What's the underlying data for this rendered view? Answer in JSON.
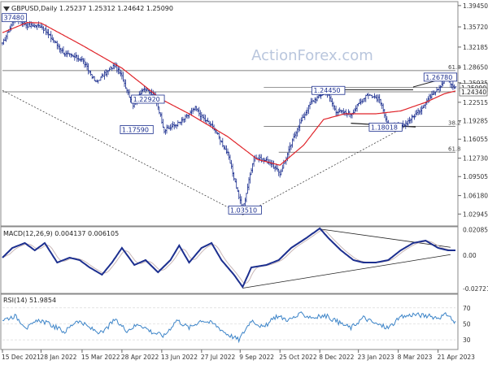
{
  "chart_data": {
    "type": "line",
    "instrument": "GBPUSD,Daily",
    "ohlc": "1.25237 1.25312 1.24642 1.25090",
    "watermark": "ActionForex.com",
    "price_axis": {
      "ylim": [
        1.01,
        1.4
      ],
      "ticks": [
        "1.39450",
        "1.35720",
        "1.32185",
        "1.28650",
        "1.25935",
        "1.22515",
        "1.19285",
        "1.16055",
        "1.12730",
        "1.09505",
        "1.06180",
        "1.02945"
      ],
      "tick_values": [
        1.3945,
        1.3572,
        1.32185,
        1.2865,
        1.25935,
        1.22515,
        1.19285,
        1.16055,
        1.1273,
        1.09505,
        1.0618,
        1.02945
      ],
      "current_price_label": "1.25090",
      "current_price": 1.2509,
      "support_label": "1.24340",
      "support_price": 1.2434
    },
    "x_axis": {
      "labels": [
        "15 Dec 2021",
        "28 Jan 2022",
        "15 Mar 2022",
        "28 Apr 2022",
        "13 Jun 2022",
        "27 Jul 2022",
        "9 Sep 2022",
        "25 Oct 2022",
        "8 Dec 2022",
        "23 Jan 2023",
        "8 Mar 2023",
        "21 Apr 2023"
      ],
      "label_index": [
        0,
        31,
        64,
        96,
        128,
        160,
        191,
        223,
        255,
        286,
        318,
        350
      ],
      "total_bars": 365
    },
    "price_path": [
      [
        0,
        1.3265
      ],
      [
        10,
        1.3748
      ],
      [
        20,
        1.36
      ],
      [
        31,
        1.359
      ],
      [
        50,
        1.31
      ],
      [
        64,
        1.3
      ],
      [
        75,
        1.26
      ],
      [
        90,
        1.29
      ],
      [
        96,
        1.27
      ],
      [
        105,
        1.22
      ],
      [
        113,
        1.25
      ],
      [
        123,
        1.235
      ],
      [
        130,
        1.1759
      ],
      [
        143,
        1.19
      ],
      [
        155,
        1.215
      ],
      [
        160,
        1.2
      ],
      [
        170,
        1.18
      ],
      [
        181,
        1.135
      ],
      [
        193,
        1.0351
      ],
      [
        202,
        1.13
      ],
      [
        215,
        1.12
      ],
      [
        223,
        1.1
      ],
      [
        237,
        1.18
      ],
      [
        248,
        1.225
      ],
      [
        260,
        1.2445
      ],
      [
        268,
        1.21
      ],
      [
        280,
        1.205
      ],
      [
        293,
        1.24
      ],
      [
        303,
        1.23
      ],
      [
        310,
        1.186
      ],
      [
        320,
        1.1802
      ],
      [
        335,
        1.21
      ],
      [
        345,
        1.24
      ],
      [
        350,
        1.25
      ],
      [
        357,
        1.2678
      ],
      [
        361,
        1.255
      ],
      [
        364,
        1.2509
      ]
    ],
    "ma_path": [
      [
        0,
        1.347
      ],
      [
        20,
        1.365
      ],
      [
        31,
        1.364
      ],
      [
        64,
        1.325
      ],
      [
        96,
        1.285
      ],
      [
        128,
        1.23
      ],
      [
        150,
        1.205
      ],
      [
        181,
        1.165
      ],
      [
        205,
        1.125
      ],
      [
        223,
        1.115
      ],
      [
        242,
        1.15
      ],
      [
        258,
        1.195
      ],
      [
        275,
        1.205
      ],
      [
        300,
        1.205
      ],
      [
        320,
        1.21
      ],
      [
        340,
        1.225
      ],
      [
        355,
        1.24
      ],
      [
        364,
        1.245
      ]
    ],
    "annotations": [
      {
        "text": "37480",
        "index": 1,
        "price": 1.372
      },
      {
        "text": "1.22920",
        "index": 105,
        "price": 1.2292
      },
      {
        "text": "1.17590",
        "index": 96,
        "price": 1.1759
      },
      {
        "text": "1.03510",
        "index": 183,
        "price": 1.0351
      },
      {
        "text": "1.24450",
        "index": 250,
        "price": 1.2445
      },
      {
        "text": "1.18018",
        "index": 296,
        "price": 1.1802
      },
      {
        "text": "1.26780",
        "index": 340,
        "price": 1.2678
      }
    ],
    "fib_labels": [
      {
        "text": "61.8",
        "price": 1.2806
      },
      {
        "text": "38.2",
        "price": 1.1831
      },
      {
        "text": "61.8",
        "price": 1.1377
      }
    ],
    "macd": {
      "label": "MACD(12,26,9) 0.004137 0.006105",
      "ylim": [
        -0.03,
        0.022
      ],
      "ticks": [
        "0.020858",
        "0.00",
        "-0.027213"
      ],
      "tick_values": [
        0.020858,
        0.0,
        -0.027213
      ],
      "path": [
        [
          0,
          -0.002
        ],
        [
          8,
          0.006
        ],
        [
          18,
          0.01
        ],
        [
          26,
          0.004
        ],
        [
          34,
          0.01
        ],
        [
          44,
          -0.006
        ],
        [
          54,
          -0.002
        ],
        [
          62,
          -0.004
        ],
        [
          70,
          -0.01
        ],
        [
          80,
          -0.016
        ],
        [
          88,
          -0.006
        ],
        [
          96,
          0.006
        ],
        [
          106,
          -0.008
        ],
        [
          115,
          -0.004
        ],
        [
          125,
          -0.014
        ],
        [
          135,
          -0.004
        ],
        [
          142,
          0.008
        ],
        [
          150,
          -0.006
        ],
        [
          160,
          0.006
        ],
        [
          168,
          0.01
        ],
        [
          176,
          -0.004
        ],
        [
          186,
          -0.016
        ],
        [
          193,
          -0.026
        ],
        [
          200,
          -0.01
        ],
        [
          212,
          -0.008
        ],
        [
          222,
          -0.004
        ],
        [
          232,
          0.006
        ],
        [
          244,
          0.014
        ],
        [
          255,
          0.022
        ],
        [
          262,
          0.014
        ],
        [
          272,
          0.004
        ],
        [
          282,
          -0.004
        ],
        [
          290,
          -0.006
        ],
        [
          300,
          -0.006
        ],
        [
          310,
          -0.004
        ],
        [
          320,
          0.004
        ],
        [
          330,
          0.01
        ],
        [
          340,
          0.012
        ],
        [
          350,
          0.006
        ],
        [
          358,
          0.004
        ],
        [
          362,
          0.004
        ]
      ]
    },
    "rsi": {
      "label": "RSI(14) 51.9854",
      "ylim": [
        20,
        85
      ],
      "ticks": [
        "70",
        "50",
        "30"
      ],
      "tick_values": [
        70,
        50,
        30
      ],
      "path": [
        [
          0,
          55
        ],
        [
          10,
          60
        ],
        [
          20,
          45
        ],
        [
          30,
          55
        ],
        [
          40,
          48
        ],
        [
          50,
          40
        ],
        [
          60,
          55
        ],
        [
          70,
          45
        ],
        [
          80,
          38
        ],
        [
          90,
          55
        ],
        [
          100,
          42
        ],
        [
          110,
          50
        ],
        [
          120,
          40
        ],
        [
          130,
          35
        ],
        [
          140,
          55
        ],
        [
          150,
          45
        ],
        [
          160,
          55
        ],
        [
          170,
          50
        ],
        [
          180,
          38
        ],
        [
          190,
          30
        ],
        [
          200,
          55
        ],
        [
          210,
          45
        ],
        [
          220,
          60
        ],
        [
          230,
          55
        ],
        [
          240,
          62
        ],
        [
          250,
          58
        ],
        [
          260,
          60
        ],
        [
          270,
          52
        ],
        [
          280,
          45
        ],
        [
          290,
          58
        ],
        [
          300,
          50
        ],
        [
          310,
          45
        ],
        [
          320,
          58
        ],
        [
          330,
          62
        ],
        [
          340,
          60
        ],
        [
          350,
          58
        ],
        [
          358,
          62
        ],
        [
          363,
          52
        ]
      ]
    },
    "colors": {
      "background": "#ffffff",
      "panel_border": "#8a8a8a",
      "price_bars": "#1c2f8f",
      "moving_average": "#e0242a",
      "macd_line": "#1c2f8f",
      "signal_line": "#c9b7b7",
      "rsi_line": "#3c84c8",
      "rsi_level": "#d9d9d9",
      "annotation_border": "#1c2f8f",
      "annotation_text": "#1c2f8f",
      "horizontal_line": "#5a5a5a",
      "watermark": "#b9c6dd",
      "axis_text": "#333333"
    }
  }
}
